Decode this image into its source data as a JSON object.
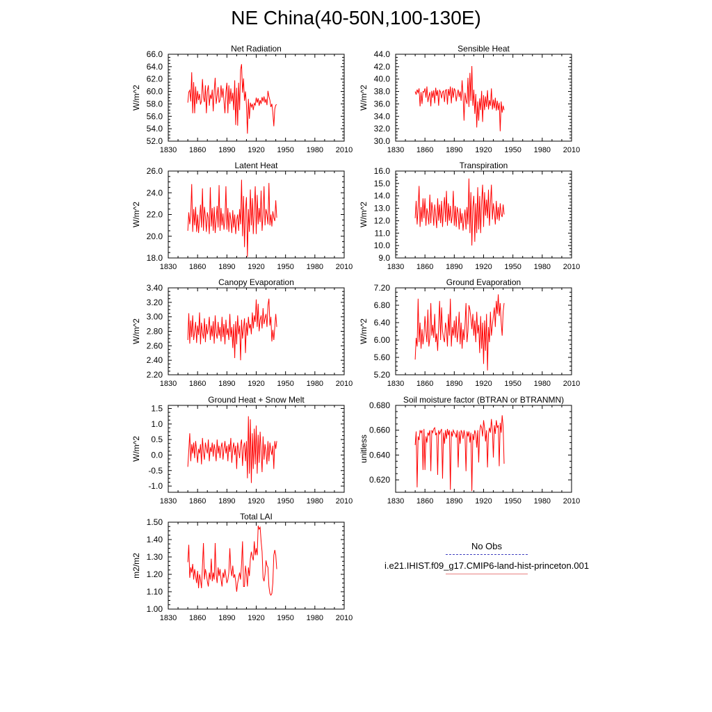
{
  "page_title": "NE China(40-50N,100-130E)",
  "legend": {
    "obs_label": "No Obs",
    "model_label": "i.e21.IHIST.f09_g17.CMIP6-land-hist-princeton.001",
    "obs_color": "#4040c0",
    "model_color": "#e88080"
  },
  "series_color": "#ff0000",
  "chart_data": [
    {
      "type": "line",
      "title": "Net Radiation",
      "ylabel": "W/m^2",
      "xlim": [
        1830,
        2010
      ],
      "ylim": [
        52.0,
        66.0
      ],
      "xticks": [
        1830,
        1860,
        1890,
        1920,
        1950,
        1980,
        2010
      ],
      "yticks": [
        52.0,
        54.0,
        56.0,
        58.0,
        60.0,
        62.0,
        64.0,
        66.0
      ],
      "ydecimals": 1,
      "x_start": 1850,
      "values": [
        58.2,
        59.9,
        60.2,
        58.4,
        63.1,
        56.5,
        61.5,
        56.5,
        60.8,
        58.0,
        60.1,
        58.6,
        59.6,
        57.9,
        58.5,
        62.0,
        59.1,
        58.3,
        61.0,
        56.5,
        60.0,
        61.0,
        57.7,
        59.5,
        58.8,
        60.3,
        56.8,
        60.1,
        62.2,
        58.0,
        59.3,
        60.7,
        58.2,
        58.6,
        61.0,
        59.0,
        60.5,
        58.5,
        56.5,
        59.9,
        61.4,
        56.5,
        61.0,
        58.0,
        60.5,
        58.4,
        59.8,
        57.0,
        61.8,
        54.6,
        60.6,
        54.5,
        61.4,
        57.0,
        63.5,
        64.4,
        59.8,
        62.1,
        58.5,
        60.0,
        57.8,
        53.2,
        58.8,
        55.6,
        58.2,
        57.5,
        58.0,
        57.0,
        58.1,
        57.8,
        59.0,
        58.2,
        58.9,
        57.7,
        58.6,
        58.0,
        59.1,
        58.4,
        59.2,
        58.2,
        58.8,
        57.8,
        60.1,
        59.2,
        58.6,
        57.5,
        58.0,
        56.6,
        54.4,
        57.2,
        57.8,
        57.9
      ]
    },
    {
      "type": "line",
      "title": "Sensible Heat",
      "ylabel": "W/m^2",
      "xlim": [
        1830,
        2010
      ],
      "ylim": [
        30.0,
        44.0
      ],
      "xticks": [
        1830,
        1860,
        1890,
        1920,
        1950,
        1980,
        2010
      ],
      "yticks": [
        30.0,
        32.0,
        34.0,
        36.0,
        38.0,
        40.0,
        42.0,
        44.0
      ],
      "ydecimals": 1,
      "x_start": 1850,
      "values": [
        38.0,
        37.5,
        38.3,
        37.8,
        38.5,
        35.6,
        37.9,
        36.0,
        38.0,
        37.9,
        38.5,
        37.0,
        38.8,
        36.3,
        37.2,
        37.9,
        35.6,
        38.1,
        37.0,
        38.2,
        36.1,
        38.6,
        37.3,
        38.2,
        35.7,
        38.2,
        37.9,
        36.9,
        37.9,
        38.1,
        36.3,
        38.2,
        38.3,
        35.9,
        38.4,
        37.3,
        38.8,
        36.1,
        38.6,
        37.0,
        38.5,
        38.1,
        36.4,
        37.5,
        38.3,
        37.1,
        38.0,
        36.5,
        39.8,
        37.4,
        33.3,
        37.8,
        36.6,
        36.0,
        40.2,
        35.5,
        41.0,
        36.5,
        42.1,
        35.7,
        38.3,
        34.4,
        37.6,
        32.2,
        36.4,
        33.3,
        36.9,
        35.0,
        38.1,
        33.1,
        37.4,
        35.0,
        37.2,
        35.5,
        38.2,
        35.1,
        36.6,
        35.7,
        38.5,
        35.1,
        36.7,
        35.3,
        37.0,
        34.9,
        36.5,
        35.0,
        36.2,
        31.6,
        36.4,
        34.6,
        35.7,
        35.0
      ]
    },
    {
      "type": "line",
      "title": "Latent Heat",
      "ylabel": "W/m^2",
      "xlim": [
        1830,
        2010
      ],
      "ylim": [
        18.0,
        26.0
      ],
      "xticks": [
        1830,
        1860,
        1890,
        1920,
        1950,
        1980,
        2010
      ],
      "yticks": [
        18.0,
        20.0,
        22.0,
        24.0,
        26.0
      ],
      "ydecimals": 1,
      "x_start": 1850,
      "values": [
        20.5,
        22.2,
        21.1,
        22.0,
        24.8,
        20.4,
        22.5,
        21.0,
        22.7,
        20.4,
        22.0,
        20.3,
        21.6,
        22.9,
        20.8,
        24.4,
        20.5,
        22.7,
        21.8,
        20.4,
        22.2,
        21.7,
        20.2,
        24.5,
        20.9,
        22.6,
        20.5,
        22.7,
        20.3,
        21.5,
        22.8,
        20.8,
        24.7,
        20.5,
        22.6,
        21.0,
        22.1,
        20.6,
        21.6,
        24.6,
        20.6,
        22.6,
        20.4,
        22.2,
        21.5,
        20.3,
        22.4,
        20.8,
        22.0,
        20.2,
        21.5,
        22.0,
        20.5,
        22.5,
        21.1,
        25.2,
        20.0,
        23.7,
        19.0,
        22.4,
        23.6,
        18.1,
        22.5,
        20.4,
        24.3,
        21.0,
        23.5,
        20.2,
        22.4,
        24.6,
        20.2,
        23.8,
        21.1,
        22.6,
        21.3,
        24.2,
        20.5,
        22.0,
        24.6,
        21.0,
        22.5,
        22.0,
        21.1,
        24.9,
        21.0,
        22.0,
        20.9,
        22.3,
        21.7,
        21.4,
        23.3,
        21.7
      ]
    },
    {
      "type": "line",
      "title": "Transpiration",
      "ylabel": "W/m^2",
      "xlim": [
        1830,
        2010
      ],
      "ylim": [
        9.0,
        16.0
      ],
      "xticks": [
        1830,
        1860,
        1890,
        1920,
        1950,
        1980,
        2010
      ],
      "yticks": [
        9.0,
        10.0,
        11.0,
        12.0,
        13.0,
        14.0,
        15.0,
        16.0
      ],
      "ydecimals": 1,
      "x_start": 1850,
      "values": [
        12.2,
        13.6,
        11.7,
        13.0,
        14.8,
        11.5,
        13.1,
        11.9,
        13.8,
        12.2,
        13.8,
        11.6,
        13.0,
        12.5,
        11.7,
        14.1,
        11.8,
        13.5,
        12.8,
        11.6,
        13.3,
        12.4,
        11.4,
        13.8,
        12.0,
        13.3,
        11.8,
        13.6,
        11.5,
        12.9,
        13.9,
        11.9,
        14.4,
        11.6,
        13.4,
        12.0,
        13.2,
        11.8,
        12.4,
        14.4,
        11.6,
        13.2,
        11.5,
        13.1,
        12.6,
        11.3,
        13.0,
        11.8,
        12.6,
        11.2,
        12.2,
        12.9,
        11.3,
        13.1,
        11.7,
        15.4,
        11.0,
        14.3,
        10.0,
        13.1,
        14.0,
        10.3,
        13.4,
        11.0,
        14.7,
        11.3,
        14.0,
        11.0,
        13.6,
        14.9,
        11.5,
        14.3,
        12.4,
        13.7,
        12.2,
        14.5,
        11.6,
        13.4,
        14.9,
        12.1,
        13.4,
        12.7,
        11.7,
        13.6,
        12.1,
        13.1,
        12.0,
        13.4,
        12.5,
        12.3,
        13.3,
        12.5
      ]
    },
    {
      "type": "line",
      "title": "Canopy Evaporation",
      "ylabel": "W/m^2",
      "xlim": [
        1830,
        2010
      ],
      "ylim": [
        2.2,
        3.4
      ],
      "xticks": [
        1830,
        1860,
        1890,
        1920,
        1950,
        1980,
        2010
      ],
      "yticks": [
        2.2,
        2.4,
        2.6,
        2.8,
        3.0,
        3.2,
        3.4
      ],
      "ydecimals": 2,
      "x_start": 1850,
      "values": [
        2.68,
        3.05,
        2.63,
        2.95,
        2.72,
        3.02,
        2.68,
        2.8,
        2.93,
        2.64,
        2.88,
        2.75,
        3.06,
        2.62,
        2.92,
        2.78,
        2.7,
        2.98,
        2.65,
        2.9,
        2.76,
        2.84,
        3.0,
        2.68,
        2.88,
        2.73,
        2.94,
        2.63,
        3.02,
        2.78,
        2.7,
        2.93,
        2.74,
        2.86,
        2.66,
        3.0,
        2.72,
        2.9,
        2.62,
        2.96,
        2.75,
        2.84,
        2.68,
        3.04,
        2.72,
        2.86,
        2.57,
        2.9,
        2.43,
        2.94,
        2.62,
        3.02,
        2.76,
        2.88,
        2.4,
        2.96,
        2.7,
        2.84,
        2.98,
        2.5,
        2.92,
        2.74,
        3.0,
        2.84,
        2.9,
        2.76,
        3.06,
        2.84,
        3.02,
        2.93,
        3.24,
        2.86,
        3.18,
        2.8,
        2.96,
        3.02,
        2.84,
        3.12,
        2.9,
        2.98,
        3.04,
        2.86,
        3.16,
        3.25,
        2.88,
        3.0,
        2.66,
        2.82,
        2.68,
        2.86,
        3.04,
        2.86
      ]
    },
    {
      "type": "line",
      "title": "Ground Evaporation",
      "ylabel": "W/m^2",
      "xlim": [
        1830,
        2010
      ],
      "ylim": [
        5.2,
        7.2
      ],
      "xticks": [
        1830,
        1860,
        1890,
        1920,
        1950,
        1980,
        2010
      ],
      "yticks": [
        5.2,
        5.6,
        6.0,
        6.4,
        6.8,
        7.2
      ],
      "ydecimals": 2,
      "x_start": 1850,
      "values": [
        5.55,
        6.05,
        5.85,
        6.95,
        5.95,
        6.4,
        5.8,
        6.25,
        5.9,
        6.1,
        6.55,
        6.2,
        5.95,
        6.7,
        5.85,
        6.05,
        6.85,
        6.1,
        6.35,
        6.05,
        6.6,
        5.95,
        6.15,
        5.75,
        6.3,
        6.9,
        6.0,
        6.75,
        6.2,
        6.05,
        5.95,
        6.4,
        6.25,
        5.85,
        6.6,
        6.1,
        6.95,
        5.85,
        6.3,
        6.1,
        6.45,
        6.05,
        6.55,
        5.95,
        6.2,
        6.65,
        5.9,
        6.4,
        5.8,
        6.25,
        6.0,
        6.35,
        6.85,
        5.95,
        6.2,
        6.8,
        6.7,
        6.5,
        6.25,
        6.6,
        6.1,
        6.45,
        5.95,
        6.65,
        6.15,
        6.35,
        5.7,
        6.55,
        5.8,
        6.4,
        5.45,
        6.45,
        5.75,
        6.6,
        5.3,
        6.3,
        5.95,
        6.65,
        6.1,
        6.35,
        6.55,
        6.75,
        6.3,
        6.9,
        6.6,
        7.05,
        6.55,
        6.85,
        6.4,
        6.1,
        6.65,
        6.85
      ]
    },
    {
      "type": "line",
      "title": "Ground Heat + Snow Melt",
      "ylabel": "W/m^2",
      "xlim": [
        1830,
        2010
      ],
      "ylim": [
        -1.2,
        1.6
      ],
      "xticks": [
        1830,
        1860,
        1890,
        1920,
        1950,
        1980,
        2010
      ],
      "yticks": [
        -1.0,
        -0.5,
        0.0,
        0.5,
        1.0,
        1.5
      ],
      "ydecimals": 1,
      "x_start": 1850,
      "values": [
        -0.38,
        0.15,
        0.7,
        -0.2,
        0.35,
        0.05,
        0.4,
        -0.1,
        0.45,
        0.15,
        -0.25,
        0.2,
        0.05,
        0.35,
        -0.3,
        0.55,
        0.1,
        -0.15,
        0.4,
        0.2,
        0.05,
        0.5,
        -0.2,
        0.25,
        0.1,
        0.4,
        -0.05,
        0.35,
        0.15,
        -0.2,
        0.5,
        0.05,
        0.3,
        -0.1,
        0.25,
        0.4,
        -0.15,
        0.2,
        0.45,
        0.05,
        0.3,
        -0.2,
        0.35,
        0.1,
        0.55,
        -0.25,
        0.2,
        0.4,
        0.0,
        0.3,
        -0.45,
        0.4,
        0.15,
        -0.1,
        0.35,
        0.5,
        -0.35,
        0.25,
        0.4,
        -0.2,
        0.45,
        -0.75,
        1.25,
        -0.6,
        1.15,
        -0.9,
        0.7,
        -0.45,
        0.85,
        -0.3,
        0.95,
        -0.6,
        0.65,
        -0.25,
        0.75,
        0.1,
        -0.55,
        0.6,
        -0.15,
        0.35,
        0.1,
        -0.3,
        0.45,
        -0.2,
        0.4,
        0.15,
        0.0,
        0.3,
        -0.45,
        0.45,
        0.2,
        0.45
      ]
    },
    {
      "type": "line",
      "title": "Soil moisture factor (BTRAN or BTRANMN)",
      "ylabel": "unitless",
      "xlim": [
        1830,
        2010
      ],
      "ylim": [
        0.61,
        0.68
      ],
      "xticks": [
        1830,
        1860,
        1890,
        1920,
        1950,
        1980,
        2010
      ],
      "yticks": [
        0.62,
        0.64,
        0.66,
        0.68
      ],
      "ydecimals": 3,
      "x_start": 1850,
      "values": [
        0.648,
        0.659,
        0.614,
        0.655,
        0.652,
        0.66,
        0.658,
        0.66,
        0.628,
        0.661,
        0.628,
        0.655,
        0.65,
        0.658,
        0.656,
        0.66,
        0.627,
        0.66,
        0.658,
        0.661,
        0.662,
        0.656,
        0.658,
        0.624,
        0.66,
        0.657,
        0.659,
        0.661,
        0.621,
        0.658,
        0.649,
        0.66,
        0.653,
        0.661,
        0.656,
        0.66,
        0.612,
        0.659,
        0.655,
        0.66,
        0.658,
        0.657,
        0.654,
        0.66,
        0.63,
        0.659,
        0.649,
        0.66,
        0.658,
        0.653,
        0.66,
        0.655,
        0.627,
        0.659,
        0.655,
        0.659,
        0.65,
        0.658,
        0.611,
        0.657,
        0.652,
        0.66,
        0.657,
        0.646,
        0.66,
        0.634,
        0.659,
        0.664,
        0.662,
        0.655,
        0.668,
        0.662,
        0.651,
        0.66,
        0.63,
        0.657,
        0.662,
        0.658,
        0.669,
        0.66,
        0.638,
        0.664,
        0.657,
        0.668,
        0.662,
        0.664,
        0.631,
        0.666,
        0.658,
        0.672,
        0.663,
        0.633
      ]
    },
    {
      "type": "line",
      "title": "Total LAI",
      "ylabel": "m2/m2",
      "xlim": [
        1830,
        2010
      ],
      "ylim": [
        1.0,
        1.5
      ],
      "xticks": [
        1830,
        1860,
        1890,
        1920,
        1950,
        1980,
        2010
      ],
      "yticks": [
        1.0,
        1.1,
        1.2,
        1.3,
        1.4,
        1.5
      ],
      "ydecimals": 2,
      "x_start": 1850,
      "values": [
        1.27,
        1.37,
        1.18,
        1.24,
        1.21,
        1.26,
        1.17,
        1.23,
        1.19,
        1.15,
        1.22,
        1.12,
        1.2,
        1.17,
        1.12,
        1.25,
        1.38,
        1.17,
        1.23,
        1.2,
        1.16,
        1.13,
        1.21,
        1.17,
        1.29,
        1.16,
        1.21,
        1.17,
        1.38,
        1.2,
        1.15,
        1.24,
        1.19,
        1.23,
        1.17,
        1.13,
        1.21,
        1.18,
        1.23,
        1.19,
        1.15,
        1.17,
        1.21,
        1.35,
        1.23,
        1.19,
        1.25,
        1.18,
        1.2,
        1.16,
        1.1,
        1.15,
        1.18,
        1.21,
        1.17,
        1.26,
        1.39,
        1.13,
        1.13,
        1.25,
        1.2,
        1.13,
        1.24,
        1.19,
        1.29,
        1.33,
        1.3,
        1.28,
        1.39,
        1.31,
        1.35,
        1.31,
        1.48,
        1.46,
        1.47,
        1.39,
        1.33,
        1.18,
        1.16,
        1.2,
        1.28,
        1.25,
        1.24,
        1.13,
        1.09,
        1.08,
        1.09,
        1.15,
        1.31,
        1.34,
        1.31,
        1.23
      ]
    }
  ]
}
